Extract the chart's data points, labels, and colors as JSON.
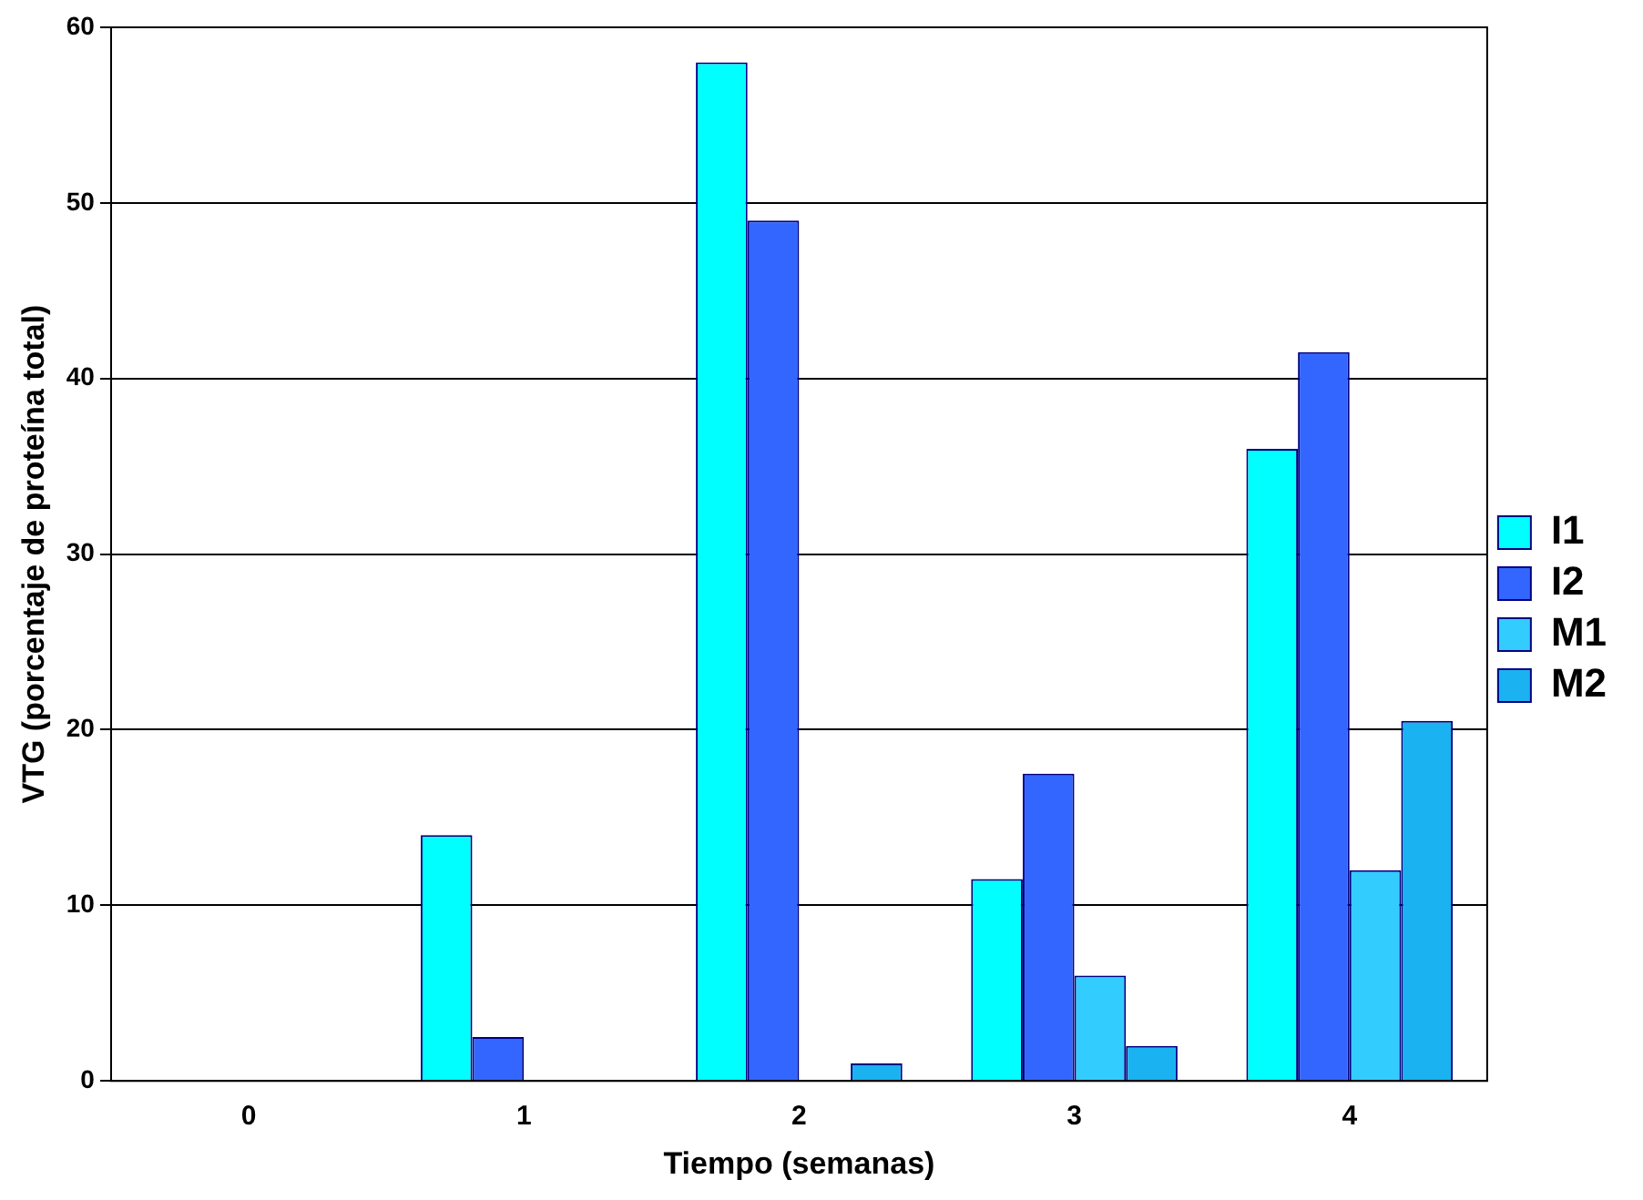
{
  "chart_data": {
    "type": "bar",
    "xlabel": "Tiempo (semanas)",
    "ylabel": "VTG (porcentaje de proteína total)",
    "categories": [
      "0",
      "1",
      "2",
      "3",
      "4"
    ],
    "series": [
      {
        "name": "I1",
        "color": "#00ffff",
        "values": [
          0,
          14,
          58,
          11.5,
          36
        ]
      },
      {
        "name": "I2",
        "color": "#3366ff",
        "values": [
          0,
          2.5,
          49,
          17.5,
          41.5
        ]
      },
      {
        "name": "M1",
        "color": "#33ccff",
        "values": [
          0,
          0,
          0,
          6,
          12
        ]
      },
      {
        "name": "M2",
        "color": "#1ab2f0",
        "values": [
          0,
          0,
          1,
          2,
          20.5
        ]
      }
    ],
    "ylim": [
      0,
      60
    ],
    "yticks": [
      0,
      10,
      20,
      30,
      40,
      50,
      60
    ],
    "grid": "y",
    "legend": "right"
  }
}
